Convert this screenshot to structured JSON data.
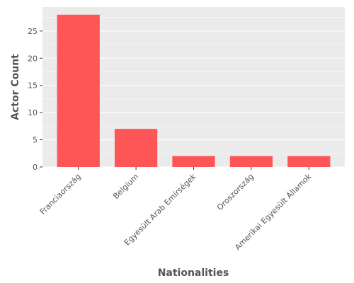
{
  "chart_data": {
    "type": "bar",
    "categories": [
      "Franciaország",
      "Belgium",
      "Egyesült Arab Emírségek",
      "Oroszország",
      "Amerikai Egyesült Államok"
    ],
    "values": [
      28,
      7,
      2,
      2,
      2
    ],
    "title": "",
    "xlabel": "Nationalities",
    "ylabel": "Actor Count",
    "ylim": [
      0,
      29.4
    ],
    "yticks": [
      0,
      5,
      10,
      15,
      20,
      25
    ],
    "grid": true,
    "legend": "none",
    "colors": {
      "bar": "#fe5656",
      "plot_background": "#ebebeb",
      "grid": "#ffffff",
      "text": "#555555"
    }
  }
}
